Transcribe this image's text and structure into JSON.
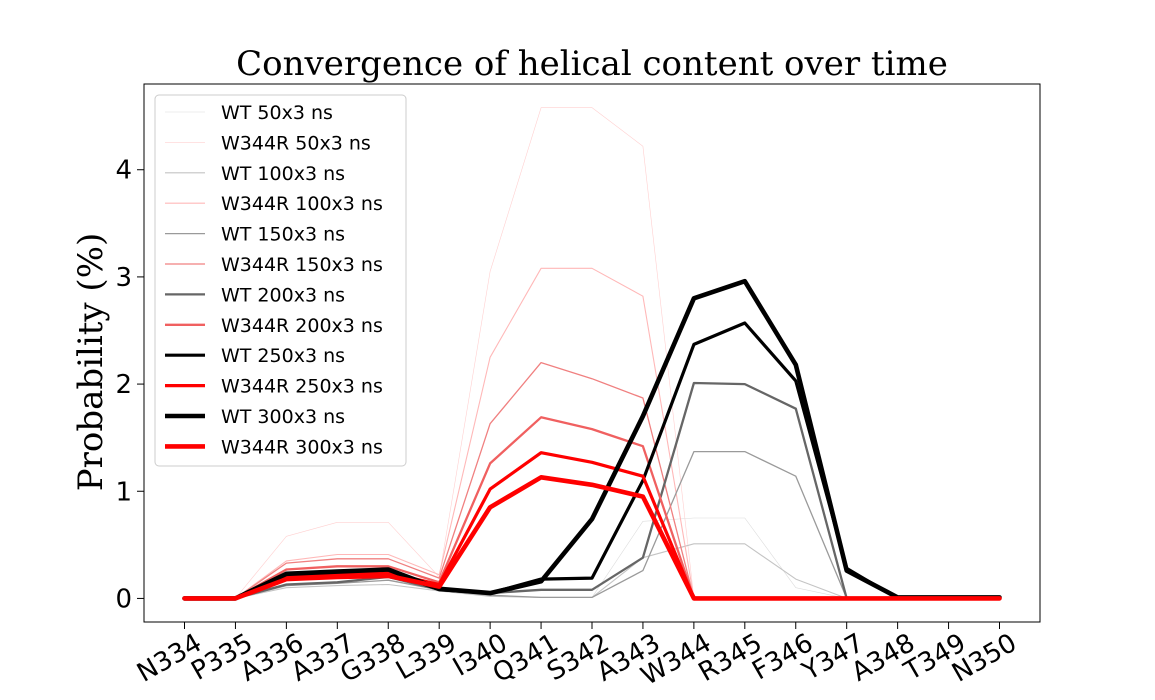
{
  "chart_data": {
    "type": "line",
    "title": "Convergence of helical content over time",
    "xlabel": "",
    "ylabel": "Probability (%)",
    "ylim": [
      -0.22,
      4.8
    ],
    "yticks": [
      0,
      1,
      2,
      3,
      4
    ],
    "grid": false,
    "legend_position": "upper-left",
    "categories": [
      "N334",
      "P335",
      "A336",
      "A337",
      "G338",
      "L339",
      "I340",
      "Q341",
      "S342",
      "A343",
      "W344",
      "R345",
      "F346",
      "Y347",
      "A348",
      "T349",
      "N350"
    ],
    "series": [
      {
        "name": "WT 50x3 ns",
        "color": "#dcdcdc",
        "values": [
          0,
          0,
          0.1,
          0.12,
          0.13,
          0.07,
          0.02,
          0.01,
          0.01,
          0.72,
          0.75,
          0.75,
          0.1,
          0,
          0,
          0,
          0
        ]
      },
      {
        "name": "W344R 50x3 ns",
        "color": "#ffd0d0",
        "values": [
          0,
          0,
          0.58,
          0.71,
          0.71,
          0.2,
          3.05,
          4.58,
          4.58,
          4.22,
          0,
          0,
          0,
          0,
          0,
          0,
          0
        ]
      },
      {
        "name": "WT 100x3 ns",
        "color": "#c4c4c4",
        "values": [
          0,
          0,
          0.1,
          0.12,
          0.13,
          0.07,
          0.02,
          0.01,
          0.01,
          0.38,
          0.51,
          0.51,
          0.18,
          0,
          0,
          0,
          0
        ]
      },
      {
        "name": "W344R 100x3 ns",
        "color": "#ffb8b8",
        "values": [
          0,
          0,
          0.35,
          0.41,
          0.41,
          0.22,
          2.25,
          3.08,
          3.08,
          2.82,
          0,
          0,
          0,
          0,
          0,
          0,
          0
        ]
      },
      {
        "name": "WT 150x3 ns",
        "color": "#9a9a9a",
        "values": [
          0,
          0,
          0.12,
          0.14,
          0.17,
          0.08,
          0.03,
          0.01,
          0.01,
          0.26,
          1.37,
          1.37,
          1.14,
          0,
          0,
          0,
          0
        ]
      },
      {
        "name": "W344R 150x3 ns",
        "color": "#f08080",
        "values": [
          0,
          0,
          0.33,
          0.37,
          0.37,
          0.19,
          1.63,
          2.2,
          2.05,
          1.87,
          0,
          0,
          0,
          0,
          0,
          0,
          0
        ]
      },
      {
        "name": "WT 200x3 ns",
        "color": "#666666",
        "values": [
          0,
          0,
          0.13,
          0.15,
          0.2,
          0.08,
          0.05,
          0.08,
          0.08,
          0.38,
          2.01,
          2.0,
          1.77,
          0,
          0,
          0,
          0
        ]
      },
      {
        "name": "W344R 200x3 ns",
        "color": "#f06060",
        "values": [
          0,
          0,
          0.27,
          0.3,
          0.3,
          0.15,
          1.26,
          1.69,
          1.58,
          1.42,
          0,
          0,
          0,
          0,
          0,
          0,
          0
        ]
      },
      {
        "name": "WT 250x3 ns",
        "color": "#000000",
        "values": [
          0,
          0,
          0.21,
          0.23,
          0.25,
          0.08,
          0.05,
          0.18,
          0.19,
          1.1,
          2.37,
          2.57,
          2.03,
          0.28,
          0,
          0,
          0
        ]
      },
      {
        "name": "W344R 250x3 ns",
        "color": "#ff0000",
        "values": [
          0,
          0,
          0.2,
          0.23,
          0.24,
          0.13,
          1.02,
          1.36,
          1.27,
          1.14,
          0,
          0,
          0,
          0,
          0,
          0,
          0
        ]
      },
      {
        "name": "WT 300x3 ns",
        "color": "#000000",
        "values": [
          0,
          0,
          0.23,
          0.25,
          0.27,
          0.09,
          0.05,
          0.16,
          0.74,
          1.7,
          2.8,
          2.96,
          2.18,
          0.26,
          0.01,
          0.01,
          0.01
        ]
      },
      {
        "name": "W344R 300x3 ns",
        "color": "#ff0000",
        "values": [
          0,
          0,
          0.18,
          0.2,
          0.21,
          0.11,
          0.85,
          1.13,
          1.06,
          0.95,
          0,
          0,
          0,
          0,
          0,
          0,
          0
        ]
      }
    ]
  }
}
